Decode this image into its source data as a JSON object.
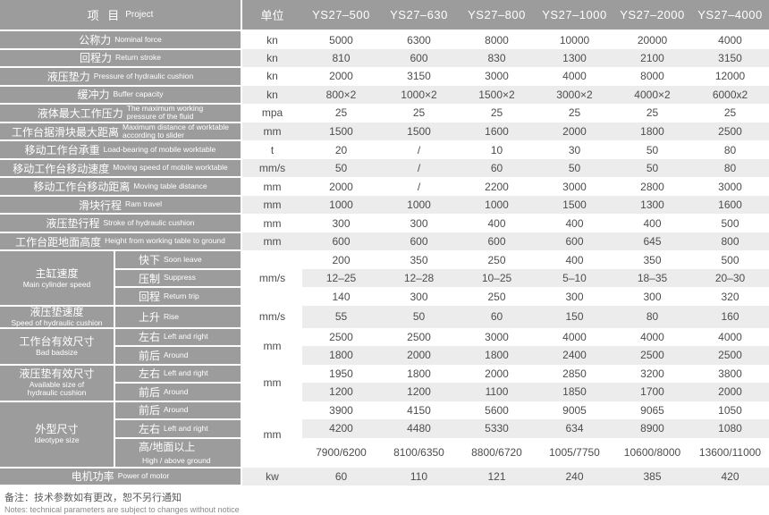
{
  "colors": {
    "header_bg": "#9c9c9c",
    "label_bg": "#9c9c9c",
    "stripe_bg": "#ececec",
    "value_text": "#4d4d4d",
    "label_text": "#ffffff"
  },
  "table": {
    "project_header": {
      "zh": "项  目",
      "en": "Project"
    },
    "unit_header": "单位",
    "models": [
      "YS27–500",
      "YS27–630",
      "YS27–800",
      "YS27–1000",
      "YS27–2000",
      "YS27–4000"
    ],
    "rows": [
      {
        "zh": "公称力",
        "en": "Nominal force",
        "unit": "kn",
        "values": [
          "5000",
          "6300",
          "8000",
          "10000",
          "20000",
          "4000"
        ]
      },
      {
        "zh": "回程力",
        "en": "Return stroke",
        "unit": "kn",
        "values": [
          "810",
          "600",
          "830",
          "1300",
          "2100",
          "3150"
        ]
      },
      {
        "zh": "液压垫力",
        "en": "Pressure of hydraulic cushion",
        "unit": "kn",
        "values": [
          "2000",
          "3150",
          "3000",
          "4000",
          "8000",
          "12000"
        ]
      },
      {
        "zh": "缓冲力",
        "en": "Buffer capacity",
        "unit": "kn",
        "values": [
          "800×2",
          "1000×2",
          "1500×2",
          "3000×2",
          "4000×2",
          "6000x2"
        ]
      },
      {
        "zh": "液体最大工作压力",
        "en": "The maximum working\npressure of the fluid",
        "unit": "mpa",
        "values": [
          "25",
          "25",
          "25",
          "25",
          "25",
          "25"
        ]
      },
      {
        "zh": "工作台据滑块最大距离",
        "en": "Maximum distance of worktable\naccording to slider",
        "unit": "mm",
        "values": [
          "1500",
          "1500",
          "1600",
          "2000",
          "1800",
          "2500"
        ]
      },
      {
        "zh": "移动工作台承重",
        "en": "Load-bearing of mobile worktable",
        "unit": "t",
        "values": [
          "20",
          "/",
          "10",
          "30",
          "50",
          "80"
        ]
      },
      {
        "zh": "移动工作台移动速度",
        "en": "Moving speed of mobile worktable",
        "unit": "mm/s",
        "values": [
          "50",
          "/",
          "60",
          "50",
          "50",
          "80"
        ]
      },
      {
        "zh": "移动工作台移动距离",
        "en": "Moving table distance",
        "unit": "mm",
        "values": [
          "2000",
          "/",
          "2200",
          "3000",
          "2800",
          "3000"
        ]
      },
      {
        "zh": "滑块行程",
        "en": "Ram travel",
        "unit": "mm",
        "values": [
          "1000",
          "1000",
          "1000",
          "1500",
          "1300",
          "1600"
        ]
      },
      {
        "zh": "液压垫行程",
        "en": "Stroke of hydraulic cushion",
        "unit": "mm",
        "values": [
          "300",
          "300",
          "400",
          "400",
          "400",
          "500"
        ]
      },
      {
        "zh": "工作台距地面高度",
        "en": "Height from working table to ground",
        "unit": "mm",
        "values": [
          "600",
          "600",
          "600",
          "600",
          "645",
          "800"
        ]
      },
      {
        "group_zh": "主缸速度",
        "group_en": "Main cylinder speed",
        "group_rows": 3,
        "sub_zh": "快下",
        "sub_en": "Soon leave",
        "unit": "mm/s",
        "unit_rows": 3,
        "values": [
          "200",
          "350",
          "250",
          "400",
          "350",
          "500"
        ]
      },
      {
        "sub_zh": "压制",
        "sub_en": "Suppress",
        "values": [
          "12–25",
          "12–28",
          "10–25",
          "5–10",
          "18–35",
          "20–30"
        ]
      },
      {
        "sub_zh": "回程",
        "sub_en": "Return trip",
        "values": [
          "140",
          "300",
          "250",
          "300",
          "300",
          "320"
        ]
      },
      {
        "group_zh": "液压垫速度",
        "group_en": "Speed of hydraulic cushion",
        "group_rows": 1,
        "sub_zh": "上升",
        "sub_en": "Rise",
        "unit": "mm/s",
        "unit_rows": 1,
        "values": [
          "55",
          "50",
          "60",
          "150",
          "80",
          "160"
        ]
      },
      {
        "group_zh": "工作台有效尺寸",
        "group_en": "Bad badsize",
        "group_rows": 2,
        "sub_zh": "左右",
        "sub_en": "Left and right",
        "unit": "mm",
        "unit_rows": 2,
        "values": [
          "2500",
          "2500",
          "3000",
          "4000",
          "4000",
          "4000"
        ]
      },
      {
        "sub_zh": "前后",
        "sub_en": "Around",
        "values": [
          "1800",
          "2000",
          "1800",
          "2400",
          "2500",
          "2500"
        ]
      },
      {
        "group_zh": "液压垫有效尺寸",
        "group_en": "Available size of\nhydraulic cushion",
        "group_rows": 2,
        "sub_zh": "左右",
        "sub_en": "Left and right",
        "unit": "mm",
        "unit_rows": 2,
        "values": [
          "1950",
          "1800",
          "2000",
          "2850",
          "3200",
          "3800"
        ]
      },
      {
        "sub_zh": "前后",
        "sub_en": "Around",
        "values": [
          "1200",
          "1200",
          "1100",
          "1850",
          "1700",
          "2000"
        ]
      },
      {
        "group_zh": "外型尺寸",
        "group_en": "Ideotype size",
        "group_rows": 3,
        "sub_zh": "前后",
        "sub_en": "Around",
        "unit": "mm",
        "unit_rows": 3,
        "values": [
          "3900",
          "4150",
          "5600",
          "9005",
          "9065",
          "1050"
        ]
      },
      {
        "sub_zh": "左右",
        "sub_en": "Left and right",
        "values": [
          "4200",
          "4480",
          "5330",
          "634",
          "8900",
          "1080"
        ]
      },
      {
        "sub_zh": "高/地面以上",
        "sub_en": "High / above ground",
        "values": [
          "7900/6200",
          "8100/6350",
          "8800/6720",
          "1005/7750",
          "10600/8000",
          "13600/11000"
        ]
      },
      {
        "zh": "电机功率",
        "en": "Power of motor",
        "unit": "kw",
        "values": [
          "60",
          "110",
          "121",
          "240",
          "385",
          "420"
        ]
      }
    ]
  },
  "notes": {
    "zh": "备注：技术参数如有更改，恕不另行通知",
    "en": "Notes: technical parameters are subject to changes without notice"
  }
}
